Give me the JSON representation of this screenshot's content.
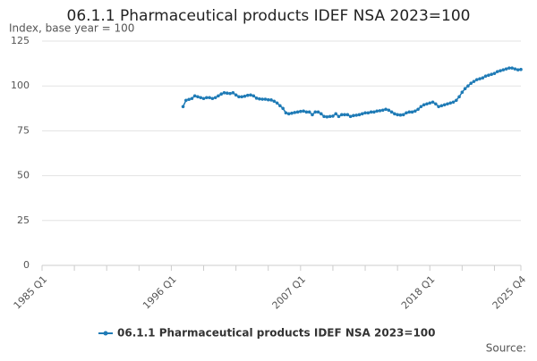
{
  "chart_data": {
    "type": "line",
    "title": "06.1.1 Pharmaceutical products IDEF NSA 2023=100",
    "subtitle": "Index, base year = 100",
    "source": "Source:",
    "categories": [
      "1985 Q1",
      null,
      null,
      null,
      null,
      null,
      null,
      null,
      null,
      null,
      null,
      null,
      null,
      null,
      null,
      null,
      null,
      null,
      null,
      null,
      null,
      null,
      null,
      null,
      null,
      null,
      null,
      null,
      null,
      null,
      null,
      null,
      null,
      null,
      null,
      null,
      null,
      null,
      null,
      null,
      null,
      null,
      null,
      null,
      "1996 Q1",
      null,
      null,
      null,
      null,
      null,
      null,
      null,
      null,
      null,
      null,
      null,
      null,
      null,
      null,
      null,
      null,
      null,
      null,
      null,
      null,
      null,
      null,
      null,
      null,
      null,
      null,
      null,
      null,
      null,
      null,
      null,
      null,
      null,
      null,
      null,
      null,
      null,
      null,
      null,
      null,
      null,
      null,
      null,
      "2007 Q1",
      null,
      null,
      null,
      null,
      null,
      null,
      null,
      null,
      null,
      null,
      null,
      null,
      null,
      null,
      null,
      null,
      null,
      null,
      null,
      null,
      null,
      null,
      null,
      null,
      null,
      null,
      null,
      null,
      null,
      null,
      null,
      null,
      null,
      null,
      null,
      null,
      null,
      null,
      null,
      null,
      null,
      null,
      null,
      "2018 Q1",
      null,
      null,
      null,
      null,
      null,
      null,
      null,
      null,
      null,
      null,
      null,
      null,
      null,
      null,
      null,
      null,
      null,
      null,
      null,
      null,
      null,
      null,
      null,
      null,
      null,
      null,
      null,
      null,
      null,
      null,
      "2025 Q4"
    ],
    "series": [
      {
        "name": "06.1.1 Pharmaceutical products IDEF NSA 2023=100",
        "color": "#1f7bb6",
        "values": [
          null,
          null,
          null,
          null,
          null,
          null,
          null,
          null,
          null,
          null,
          null,
          null,
          null,
          null,
          null,
          null,
          null,
          null,
          null,
          null,
          null,
          null,
          null,
          null,
          null,
          null,
          null,
          null,
          null,
          null,
          null,
          null,
          null,
          null,
          null,
          null,
          null,
          null,
          null,
          null,
          null,
          null,
          null,
          null,
          null,
          null,
          null,
          null,
          88.5,
          92,
          92.5,
          93,
          94.5,
          94,
          93.5,
          93,
          93.5,
          93.5,
          93,
          93.5,
          94.5,
          95.5,
          96.2,
          96,
          95.8,
          96.2,
          95,
          94,
          94,
          94.3,
          94.8,
          95,
          94.5,
          93.2,
          92.8,
          92.6,
          92.6,
          92.3,
          92.2,
          91.5,
          90.5,
          89,
          87.5,
          85,
          84.5,
          84.8,
          85.2,
          85.5,
          85.8,
          86,
          85.5,
          85.5,
          84,
          85.5,
          85.5,
          84.5,
          83,
          82.8,
          83,
          83.2,
          84.5,
          83,
          84,
          84,
          84,
          83,
          83.5,
          83.7,
          84,
          84.5,
          85,
          85,
          85.5,
          85.5,
          86,
          86.2,
          86.5,
          87,
          86.5,
          85.5,
          84.5,
          84,
          83.8,
          84,
          85,
          85.5,
          85.5,
          86,
          87,
          88.5,
          89.5,
          90,
          90.5,
          91,
          90,
          88.5,
          89,
          89.5,
          90,
          90.5,
          91,
          92,
          94,
          96.5,
          98.5,
          100,
          101.5,
          102.5,
          103.5,
          104,
          104.5,
          105.5,
          106,
          106.5,
          107,
          108,
          108.5,
          109,
          109.5,
          110,
          110,
          109.5,
          109,
          109.2
        ]
      }
    ],
    "ylim": [
      0,
      125
    ],
    "yticks": [
      0,
      25,
      50,
      75,
      100,
      125
    ],
    "grid": true,
    "legend": "bottom"
  }
}
